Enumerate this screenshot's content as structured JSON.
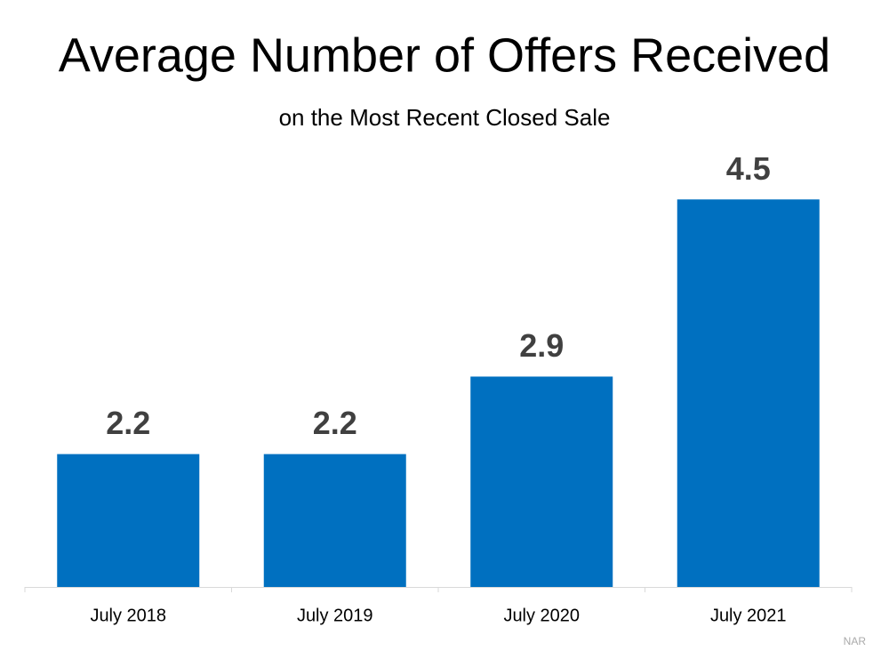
{
  "chart_data": {
    "type": "bar",
    "title": "Average Number of Offers Received",
    "subtitle": "on the Most Recent Closed Sale",
    "categories": [
      "July 2018",
      "July 2019",
      "July 2020",
      "July 2021"
    ],
    "values": [
      2.2,
      2.2,
      2.9,
      4.5
    ],
    "color": "#0070c0",
    "ylim": [
      1,
      5
    ],
    "source": "NAR"
  }
}
